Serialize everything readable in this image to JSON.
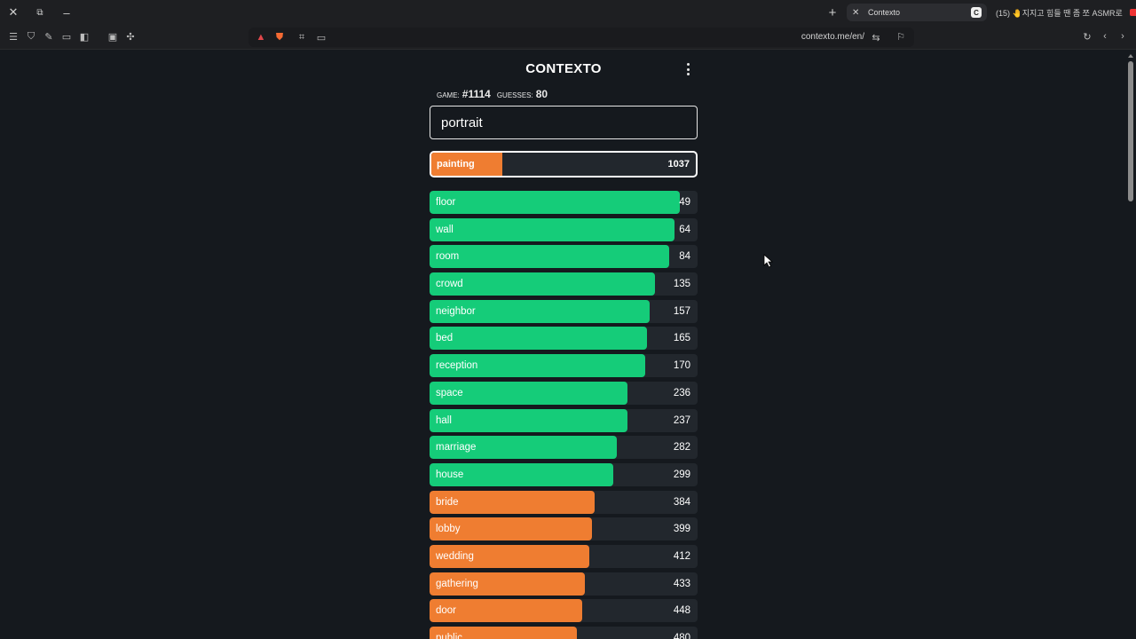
{
  "browser": {
    "tab": {
      "title": "Contexto",
      "favicon": "C"
    },
    "other_tab": {
      "title": "(15) 🤚지지고 힘들 땐 좀 쪼 ASMR로"
    },
    "url": "contexto.me/en/"
  },
  "game": {
    "title": "CONTEXTO",
    "game_label": "GAME:",
    "game_number": "#1114",
    "guesses_label": "GUESSES:",
    "guesses_count": "80",
    "input_value": "portrait",
    "last_guess": {
      "word": "painting",
      "rank": "1037",
      "fill": 0.27,
      "color": "#ef7d31"
    },
    "guesses": [
      {
        "word": "floor",
        "rank": "49",
        "fill": 0.935,
        "color": "#15cc79"
      },
      {
        "word": "wall",
        "rank": "64",
        "fill": 0.915,
        "color": "#15cc79"
      },
      {
        "word": "room",
        "rank": "84",
        "fill": 0.895,
        "color": "#15cc79"
      },
      {
        "word": "crowd",
        "rank": "135",
        "fill": 0.84,
        "color": "#15cc79"
      },
      {
        "word": "neighbor",
        "rank": "157",
        "fill": 0.82,
        "color": "#15cc79"
      },
      {
        "word": "bed",
        "rank": "165",
        "fill": 0.81,
        "color": "#15cc79"
      },
      {
        "word": "reception",
        "rank": "170",
        "fill": 0.805,
        "color": "#15cc79"
      },
      {
        "word": "space",
        "rank": "236",
        "fill": 0.74,
        "color": "#15cc79"
      },
      {
        "word": "hall",
        "rank": "237",
        "fill": 0.74,
        "color": "#15cc79"
      },
      {
        "word": "marriage",
        "rank": "282",
        "fill": 0.7,
        "color": "#15cc79"
      },
      {
        "word": "house",
        "rank": "299",
        "fill": 0.685,
        "color": "#15cc79"
      },
      {
        "word": "bride",
        "rank": "384",
        "fill": 0.615,
        "color": "#ef7d31"
      },
      {
        "word": "lobby",
        "rank": "399",
        "fill": 0.605,
        "color": "#ef7d31"
      },
      {
        "word": "wedding",
        "rank": "412",
        "fill": 0.595,
        "color": "#ef7d31"
      },
      {
        "word": "gathering",
        "rank": "433",
        "fill": 0.58,
        "color": "#ef7d31"
      },
      {
        "word": "door",
        "rank": "448",
        "fill": 0.57,
        "color": "#ef7d31"
      },
      {
        "word": "public",
        "rank": "480",
        "fill": 0.55,
        "color": "#ef7d31"
      }
    ]
  }
}
